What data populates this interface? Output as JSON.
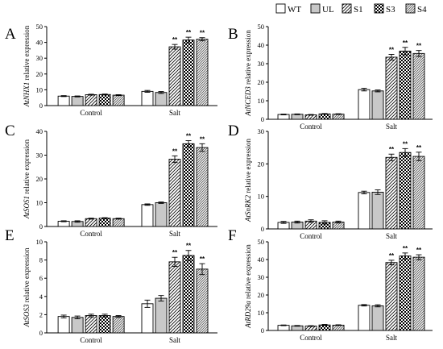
{
  "legend": [
    {
      "key": "WT",
      "label": "WT",
      "fill": "white"
    },
    {
      "key": "UL",
      "label": "UL",
      "fill": "gray"
    },
    {
      "key": "S1",
      "label": "S1",
      "fill": "diag"
    },
    {
      "key": "S3",
      "label": "S3",
      "fill": "checker"
    },
    {
      "key": "S4",
      "label": "S4",
      "fill": "diag2"
    }
  ],
  "colors": {
    "axis": "#000000",
    "gray_fill": "#c8c8c8",
    "bar_stroke": "#000000"
  },
  "chart_data": [
    {
      "type": "bar",
      "panel": "A",
      "ylabel_italic": "AtNHX1",
      "ylabel_rest": " relative expression",
      "ylim": [
        0,
        50
      ],
      "yticks": [
        0,
        10,
        20,
        30,
        40,
        50
      ],
      "categories": [
        "Control",
        "Salt"
      ],
      "series": [
        {
          "name": "WT",
          "values": [
            6.0,
            9.0
          ],
          "errors": [
            0.3,
            0.6
          ],
          "stars": [
            "",
            ""
          ]
        },
        {
          "name": "UL",
          "values": [
            5.8,
            8.3
          ],
          "errors": [
            0.3,
            0.6
          ],
          "stars": [
            "",
            ""
          ]
        },
        {
          "name": "S1",
          "values": [
            6.9,
            37.2
          ],
          "errors": [
            0.3,
            1.5
          ],
          "stars": [
            "",
            "**"
          ]
        },
        {
          "name": "S3",
          "values": [
            7.0,
            41.5
          ],
          "errors": [
            0.3,
            1.8
          ],
          "stars": [
            "",
            "**"
          ]
        },
        {
          "name": "S4",
          "values": [
            6.6,
            42.0
          ],
          "errors": [
            0.3,
            1.0
          ],
          "stars": [
            "",
            "**"
          ]
        }
      ]
    },
    {
      "type": "bar",
      "panel": "B",
      "ylabel_italic": "AtNCED3",
      "ylabel_rest": " relative expression",
      "ylim": [
        0,
        50
      ],
      "yticks": [
        0,
        10,
        20,
        30,
        40,
        50
      ],
      "categories": [
        "Control",
        "Salt"
      ],
      "series": [
        {
          "name": "WT",
          "values": [
            2.6,
            16.0
          ],
          "errors": [
            0.2,
            0.7
          ],
          "stars": [
            "",
            ""
          ]
        },
        {
          "name": "UL",
          "values": [
            2.7,
            15.3
          ],
          "errors": [
            0.2,
            0.5
          ],
          "stars": [
            "",
            ""
          ]
        },
        {
          "name": "S1",
          "values": [
            2.4,
            33.5
          ],
          "errors": [
            0.2,
            1.5
          ],
          "stars": [
            "",
            "**"
          ]
        },
        {
          "name": "S3",
          "values": [
            2.9,
            36.8
          ],
          "errors": [
            0.2,
            2.0
          ],
          "stars": [
            "",
            "**"
          ]
        },
        {
          "name": "S4",
          "values": [
            2.8,
            35.5
          ],
          "errors": [
            0.2,
            1.6
          ],
          "stars": [
            "",
            "**"
          ]
        }
      ]
    },
    {
      "type": "bar",
      "panel": "C",
      "ylabel_italic": "AtSOS1",
      "ylabel_rest": " relative expression",
      "ylim": [
        0,
        40
      ],
      "yticks": [
        0,
        10,
        20,
        30,
        40
      ],
      "categories": [
        "Control",
        "Salt"
      ],
      "series": [
        {
          "name": "WT",
          "values": [
            2.2,
            9.2
          ],
          "errors": [
            0.2,
            0.3
          ],
          "stars": [
            "",
            ""
          ]
        },
        {
          "name": "UL",
          "values": [
            2.1,
            10.0
          ],
          "errors": [
            0.3,
            0.3
          ],
          "stars": [
            "",
            ""
          ]
        },
        {
          "name": "S1",
          "values": [
            3.3,
            28.3
          ],
          "errors": [
            0.2,
            1.4
          ],
          "stars": [
            "",
            "**"
          ]
        },
        {
          "name": "S3",
          "values": [
            3.5,
            34.8
          ],
          "errors": [
            0.2,
            1.3
          ],
          "stars": [
            "",
            "**"
          ]
        },
        {
          "name": "S4",
          "values": [
            3.3,
            33.2
          ],
          "errors": [
            0.2,
            1.6
          ],
          "stars": [
            "",
            "**"
          ]
        }
      ]
    },
    {
      "type": "bar",
      "panel": "D",
      "ylabel_italic": "AtSnRK2",
      "ylabel_rest": " relative expression",
      "ylim": [
        0,
        30
      ],
      "yticks": [
        0,
        10,
        20,
        30
      ],
      "categories": [
        "Control",
        "Salt"
      ],
      "series": [
        {
          "name": "WT",
          "values": [
            2.0,
            11.2
          ],
          "errors": [
            0.3,
            0.4
          ],
          "stars": [
            "",
            ""
          ]
        },
        {
          "name": "UL",
          "values": [
            2.1,
            11.3
          ],
          "errors": [
            0.3,
            0.7
          ],
          "stars": [
            "",
            ""
          ]
        },
        {
          "name": "S1",
          "values": [
            2.4,
            22.0
          ],
          "errors": [
            0.4,
            1.0
          ],
          "stars": [
            "",
            "**"
          ]
        },
        {
          "name": "S3",
          "values": [
            2.0,
            23.5
          ],
          "errors": [
            0.5,
            1.2
          ],
          "stars": [
            "",
            "**"
          ]
        },
        {
          "name": "S4",
          "values": [
            2.1,
            22.3
          ],
          "errors": [
            0.3,
            1.3
          ],
          "stars": [
            "",
            "**"
          ]
        }
      ]
    },
    {
      "type": "bar",
      "panel": "E",
      "ylabel_italic": "AtSOS3",
      "ylabel_rest": " relative expression",
      "ylim": [
        0,
        10
      ],
      "yticks": [
        0,
        2,
        4,
        6,
        8,
        10
      ],
      "categories": [
        "Control",
        "Salt"
      ],
      "series": [
        {
          "name": "WT",
          "values": [
            1.8,
            3.2
          ],
          "errors": [
            0.15,
            0.4
          ],
          "stars": [
            "",
            ""
          ]
        },
        {
          "name": "UL",
          "values": [
            1.7,
            3.8
          ],
          "errors": [
            0.15,
            0.3
          ],
          "stars": [
            "",
            ""
          ]
        },
        {
          "name": "S1",
          "values": [
            1.9,
            7.8
          ],
          "errors": [
            0.15,
            0.5
          ],
          "stars": [
            "",
            "**"
          ]
        },
        {
          "name": "S3",
          "values": [
            1.9,
            8.5
          ],
          "errors": [
            0.15,
            0.55
          ],
          "stars": [
            "",
            "**"
          ]
        },
        {
          "name": "S4",
          "values": [
            1.8,
            7.0
          ],
          "errors": [
            0.1,
            0.6
          ],
          "stars": [
            "",
            "**"
          ]
        }
      ]
    },
    {
      "type": "bar",
      "panel": "F",
      "ylabel_italic": "AtRD29a",
      "ylabel_rest": " relative expression",
      "ylim": [
        0,
        50
      ],
      "yticks": [
        0,
        10,
        20,
        30,
        40,
        50
      ],
      "categories": [
        "Control",
        "Salt"
      ],
      "series": [
        {
          "name": "WT",
          "values": [
            2.9,
            14.2
          ],
          "errors": [
            0.2,
            0.4
          ],
          "stars": [
            "",
            ""
          ]
        },
        {
          "name": "UL",
          "values": [
            2.6,
            13.9
          ],
          "errors": [
            0.2,
            0.6
          ],
          "stars": [
            "",
            ""
          ]
        },
        {
          "name": "S1",
          "values": [
            2.5,
            38.3
          ],
          "errors": [
            0.2,
            1.3
          ],
          "stars": [
            "",
            "**"
          ]
        },
        {
          "name": "S3",
          "values": [
            3.1,
            42.0
          ],
          "errors": [
            0.3,
            1.7
          ],
          "stars": [
            "",
            "**"
          ]
        },
        {
          "name": "S4",
          "values": [
            3.0,
            41.3
          ],
          "errors": [
            0.2,
            1.4
          ],
          "stars": [
            "",
            "**"
          ]
        }
      ]
    }
  ]
}
